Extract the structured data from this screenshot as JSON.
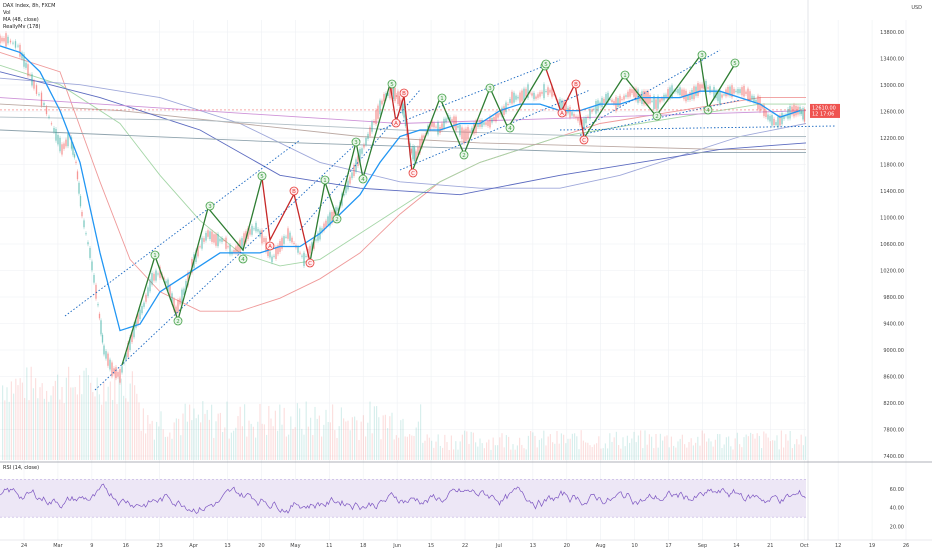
{
  "legend": {
    "symbol": "DAX Index, 8h, FXCM",
    "vol": "Vol",
    "ma": "MA (48, close)",
    "really": "ReallyMv (178)",
    "rsi": "RSI (14, close)"
  },
  "currency": "USD",
  "colors": {
    "grid": "#eef0f3",
    "up": "#26a69a",
    "down": "#ef5350",
    "ma_blue": "#2196f3",
    "impulse": "#2e7d32",
    "corrective": "#c62828",
    "channel": "#1565c0",
    "rsi_line": "#7e57c2",
    "rsi_band": "#ede7f6",
    "price_tag": "#ef5350",
    "bubble_green": "#43a047",
    "bubble_red": "#e53935"
  },
  "chart_data": {
    "type": "line",
    "x_ticks": [
      "24",
      "Mar",
      "9",
      "16",
      "23",
      "Apr",
      "13",
      "20",
      "May",
      "11",
      "18",
      "Jun",
      "15",
      "22",
      "Jul",
      "13",
      "20",
      "Aug",
      "10",
      "17",
      "Sep",
      "14",
      "21",
      "Oct",
      "12",
      "19",
      "26"
    ],
    "y_ticks": [
      "13800.00",
      "13400.00",
      "13000.00",
      "12600.00",
      "12200.00",
      "11800.00",
      "11400.00",
      "11000.00",
      "10600.00",
      "10200.00",
      "9800.00",
      "9400.00",
      "9000.00",
      "8600.00",
      "8200.00",
      "7800.00",
      "7400.00"
    ],
    "ylim": [
      7200,
      14000
    ],
    "last_price": "12610.00",
    "last_sub": "12 17:06",
    "rsi_ticks": [
      "60.00",
      "40.00",
      "20.00"
    ],
    "rsi_range": [
      10,
      80
    ],
    "rsi_band": [
      30,
      70
    ],
    "price_path": [
      [
        0,
        13700
      ],
      [
        8,
        13690
      ],
      [
        18,
        13600
      ],
      [
        26,
        13300
      ],
      [
        34,
        13000
      ],
      [
        44,
        12700
      ],
      [
        54,
        12300
      ],
      [
        62,
        12000
      ],
      [
        70,
        12200
      ],
      [
        76,
        11800
      ],
      [
        82,
        11000
      ],
      [
        90,
        10400
      ],
      [
        98,
        9600
      ],
      [
        104,
        8900
      ],
      [
        112,
        8600
      ],
      [
        120,
        8500
      ],
      [
        128,
        8900
      ],
      [
        136,
        9300
      ],
      [
        144,
        9600
      ],
      [
        152,
        10000
      ],
      [
        160,
        10100
      ],
      [
        168,
        9900
      ],
      [
        176,
        9500
      ],
      [
        184,
        9800
      ],
      [
        192,
        10200
      ],
      [
        200,
        10500
      ],
      [
        208,
        10700
      ],
      [
        216,
        10600
      ],
      [
        224,
        10600
      ],
      [
        232,
        10400
      ],
      [
        240,
        10500
      ],
      [
        248,
        10700
      ],
      [
        256,
        10800
      ],
      [
        264,
        10600
      ],
      [
        272,
        10300
      ],
      [
        280,
        10500
      ],
      [
        288,
        10700
      ],
      [
        296,
        10500
      ],
      [
        304,
        10300
      ],
      [
        312,
        10500
      ],
      [
        320,
        10700
      ],
      [
        328,
        10900
      ],
      [
        336,
        11000
      ],
      [
        344,
        11300
      ],
      [
        352,
        11600
      ],
      [
        360,
        11900
      ],
      [
        368,
        12200
      ],
      [
        376,
        12500
      ],
      [
        384,
        12800
      ],
      [
        392,
        12900
      ],
      [
        398,
        12800
      ],
      [
        404,
        12600
      ],
      [
        410,
        12000
      ],
      [
        416,
        11900
      ],
      [
        424,
        12200
      ],
      [
        432,
        12400
      ],
      [
        440,
        12300
      ],
      [
        448,
        12500
      ],
      [
        456,
        12400
      ],
      [
        464,
        12200
      ],
      [
        472,
        12300
      ],
      [
        480,
        12400
      ],
      [
        488,
        12400
      ],
      [
        496,
        12500
      ],
      [
        504,
        12600
      ],
      [
        512,
        12800
      ],
      [
        520,
        12800
      ],
      [
        528,
        12900
      ],
      [
        536,
        12800
      ],
      [
        544,
        12900
      ],
      [
        552,
        12900
      ],
      [
        560,
        12700
      ],
      [
        568,
        12600
      ],
      [
        576,
        12500
      ],
      [
        584,
        12400
      ],
      [
        592,
        12600
      ],
      [
        600,
        12700
      ],
      [
        608,
        12800
      ],
      [
        616,
        12700
      ],
      [
        624,
        12800
      ],
      [
        632,
        12900
      ],
      [
        640,
        12800
      ],
      [
        648,
        12800
      ],
      [
        656,
        12700
      ],
      [
        664,
        12800
      ],
      [
        672,
        12900
      ],
      [
        680,
        12900
      ],
      [
        688,
        12800
      ],
      [
        696,
        12900
      ],
      [
        704,
        13000
      ],
      [
        712,
        12900
      ],
      [
        720,
        12800
      ],
      [
        728,
        12900
      ],
      [
        736,
        12900
      ],
      [
        744,
        12900
      ],
      [
        752,
        12800
      ],
      [
        760,
        12700
      ],
      [
        768,
        12500
      ],
      [
        776,
        12400
      ],
      [
        784,
        12500
      ],
      [
        792,
        12600
      ],
      [
        800,
        12600
      ],
      [
        806,
        12500
      ]
    ],
    "ma_path": [
      [
        0,
        13600
      ],
      [
        20,
        13500
      ],
      [
        40,
        13200
      ],
      [
        60,
        12600
      ],
      [
        80,
        11800
      ],
      [
        100,
        10400
      ],
      [
        120,
        9200
      ],
      [
        140,
        9300
      ],
      [
        160,
        9800
      ],
      [
        180,
        10000
      ],
      [
        200,
        10200
      ],
      [
        220,
        10400
      ],
      [
        240,
        10400
      ],
      [
        260,
        10400
      ],
      [
        280,
        10500
      ],
      [
        300,
        10500
      ],
      [
        320,
        10700
      ],
      [
        340,
        11000
      ],
      [
        360,
        11300
      ],
      [
        380,
        11800
      ],
      [
        400,
        12200
      ],
      [
        420,
        12300
      ],
      [
        440,
        12300
      ],
      [
        460,
        12400
      ],
      [
        480,
        12400
      ],
      [
        500,
        12600
      ],
      [
        520,
        12700
      ],
      [
        540,
        12700
      ],
      [
        560,
        12600
      ],
      [
        580,
        12600
      ],
      [
        600,
        12700
      ],
      [
        620,
        12700
      ],
      [
        640,
        12800
      ],
      [
        660,
        12800
      ],
      [
        680,
        12800
      ],
      [
        700,
        12900
      ],
      [
        720,
        12900
      ],
      [
        740,
        12800
      ],
      [
        760,
        12700
      ],
      [
        780,
        12500
      ],
      [
        800,
        12600
      ]
    ],
    "bands": [
      {
        "color": "#ef9a9a",
        "pts": [
          [
            0,
            13500
          ],
          [
            60,
            13200
          ],
          [
            100,
            11500
          ],
          [
            130,
            10300
          ],
          [
            160,
            9800
          ],
          [
            200,
            9500
          ],
          [
            240,
            9500
          ],
          [
            280,
            9700
          ],
          [
            320,
            10000
          ],
          [
            360,
            10400
          ],
          [
            400,
            11000
          ],
          [
            440,
            11500
          ],
          [
            480,
            11800
          ],
          [
            520,
            12000
          ],
          [
            560,
            12200
          ],
          [
            600,
            12400
          ],
          [
            640,
            12500
          ],
          [
            680,
            12600
          ],
          [
            720,
            12700
          ],
          [
            760,
            12800
          ],
          [
            806,
            12800
          ]
        ]
      },
      {
        "color": "#a5d6a7",
        "pts": [
          [
            0,
            13300
          ],
          [
            60,
            13000
          ],
          [
            120,
            12400
          ],
          [
            160,
            11600
          ],
          [
            200,
            10900
          ],
          [
            240,
            10400
          ],
          [
            280,
            10200
          ],
          [
            320,
            10300
          ],
          [
            360,
            10700
          ],
          [
            400,
            11100
          ],
          [
            440,
            11500
          ],
          [
            480,
            11800
          ],
          [
            520,
            12000
          ],
          [
            560,
            12200
          ],
          [
            600,
            12300
          ],
          [
            640,
            12400
          ],
          [
            680,
            12500
          ],
          [
            720,
            12600
          ],
          [
            760,
            12700
          ],
          [
            806,
            12700
          ]
        ]
      },
      {
        "color": "#9fa8da",
        "pts": [
          [
            0,
            13100
          ],
          [
            80,
            13000
          ],
          [
            160,
            12800
          ],
          [
            240,
            12400
          ],
          [
            320,
            11800
          ],
          [
            400,
            11500
          ],
          [
            480,
            11400
          ],
          [
            560,
            11400
          ],
          [
            620,
            11600
          ],
          [
            680,
            11900
          ],
          [
            740,
            12200
          ],
          [
            806,
            12400
          ]
        ]
      },
      {
        "color": "#bcaaa4",
        "pts": [
          [
            0,
            12700
          ],
          [
            120,
            12600
          ],
          [
            240,
            12400
          ],
          [
            360,
            12200
          ],
          [
            480,
            12100
          ],
          [
            600,
            12050
          ],
          [
            720,
            12000
          ],
          [
            806,
            12000
          ]
        ]
      },
      {
        "color": "#5c6bc0",
        "pts": [
          [
            0,
            13200
          ],
          [
            100,
            12800
          ],
          [
            200,
            12300
          ],
          [
            280,
            11600
          ],
          [
            360,
            11400
          ],
          [
            460,
            11300
          ],
          [
            560,
            11600
          ],
          [
            640,
            11800
          ],
          [
            720,
            12000
          ],
          [
            806,
            12100
          ]
        ]
      },
      {
        "color": "#ce93d8",
        "pts": [
          [
            0,
            12800
          ],
          [
            200,
            12600
          ],
          [
            400,
            12400
          ],
          [
            600,
            12500
          ],
          [
            806,
            12600
          ]
        ]
      },
      {
        "color": "#b0bec5",
        "pts": [
          [
            0,
            12500
          ],
          [
            200,
            12450
          ],
          [
            400,
            12300
          ],
          [
            600,
            12200
          ],
          [
            806,
            12200
          ]
        ]
      },
      {
        "color": "#90a4ae",
        "pts": [
          [
            0,
            12300
          ],
          [
            300,
            12100
          ],
          [
            600,
            11950
          ],
          [
            806,
            11950
          ]
        ]
      }
    ],
    "channels": [
      {
        "pts": [
          [
            65,
            316
          ],
          [
            300,
            140
          ]
        ]
      },
      {
        "pts": [
          [
            95,
            390
          ],
          [
            360,
            140
          ]
        ]
      },
      {
        "pts": [
          [
            300,
            230
          ],
          [
            420,
            90
          ]
        ]
      },
      {
        "pts": [
          [
            380,
            130
          ],
          [
            560,
            60
          ]
        ]
      },
      {
        "pts": [
          [
            400,
            170
          ],
          [
            590,
            90
          ]
        ]
      },
      {
        "pts": [
          [
            580,
            130
          ],
          [
            720,
            50
          ]
        ]
      },
      {
        "pts": [
          [
            580,
            135
          ],
          [
            740,
            100
          ]
        ]
      },
      {
        "pts": [
          [
            560,
            130
          ],
          [
            835,
            126
          ]
        ]
      }
    ],
    "impulse_path": [
      [
        122,
        365
      ],
      [
        155,
        256
      ],
      [
        178,
        320
      ],
      [
        208,
        208
      ],
      [
        243,
        250
      ],
      [
        262,
        178
      ]
    ],
    "corrective_path": [
      [
        262,
        178
      ],
      [
        270,
        240
      ],
      [
        294,
        194
      ],
      [
        310,
        262
      ]
    ],
    "impulse_path2": [
      [
        310,
        262
      ],
      [
        325,
        182
      ],
      [
        337,
        218
      ],
      [
        356,
        142
      ],
      [
        363,
        178
      ],
      [
        390,
        84
      ]
    ],
    "corrective_path2": [
      [
        390,
        84
      ],
      [
        396,
        122
      ],
      [
        404,
        96
      ],
      [
        412,
        172
      ]
    ],
    "impulse_path3": [
      [
        412,
        172
      ],
      [
        440,
        98
      ],
      [
        464,
        154
      ],
      [
        490,
        88
      ],
      [
        508,
        128
      ],
      [
        545,
        66
      ]
    ],
    "corrective_path3": [
      [
        545,
        66
      ],
      [
        561,
        112
      ],
      [
        575,
        84
      ],
      [
        584,
        138
      ]
    ],
    "impulse_path4": [
      [
        584,
        138
      ],
      [
        624,
        76
      ],
      [
        656,
        116
      ],
      [
        700,
        56
      ],
      [
        708,
        108
      ],
      [
        735,
        64
      ]
    ],
    "waves": [
      {
        "label": "1",
        "c": "g",
        "x": 155,
        "y": 255
      },
      {
        "label": "2",
        "c": "g",
        "x": 178,
        "y": 321
      },
      {
        "label": "3",
        "c": "g",
        "x": 210,
        "y": 206
      },
      {
        "label": "4",
        "c": "g",
        "x": 243,
        "y": 259
      },
      {
        "label": "5",
        "c": "g",
        "x": 262,
        "y": 176
      },
      {
        "label": "A",
        "c": "r",
        "x": 270,
        "y": 246
      },
      {
        "label": "B",
        "c": "r",
        "x": 294,
        "y": 191
      },
      {
        "label": "C",
        "c": "r",
        "x": 310,
        "y": 263
      },
      {
        "label": "1",
        "c": "g",
        "x": 325,
        "y": 180
      },
      {
        "label": "2",
        "c": "g",
        "x": 337,
        "y": 219
      },
      {
        "label": "3",
        "c": "g",
        "x": 356,
        "y": 142
      },
      {
        "label": "4",
        "c": "g",
        "x": 363,
        "y": 179
      },
      {
        "label": "5",
        "c": "g",
        "x": 392,
        "y": 84
      },
      {
        "label": "A",
        "c": "r",
        "x": 396,
        "y": 123
      },
      {
        "label": "B",
        "c": "r",
        "x": 404,
        "y": 93
      },
      {
        "label": "C",
        "c": "r",
        "x": 413,
        "y": 173
      },
      {
        "label": "1",
        "c": "g",
        "x": 442,
        "y": 98
      },
      {
        "label": "2",
        "c": "g",
        "x": 464,
        "y": 155
      },
      {
        "label": "3",
        "c": "g",
        "x": 490,
        "y": 88
      },
      {
        "label": "4",
        "c": "g",
        "x": 510,
        "y": 128
      },
      {
        "label": "5",
        "c": "g",
        "x": 545,
        "y": 66
      },
      {
        "label": "A",
        "c": "r",
        "x": 562,
        "y": 113
      },
      {
        "label": "B",
        "c": "r",
        "x": 576,
        "y": 84
      },
      {
        "label": "C",
        "c": "r",
        "x": 584,
        "y": 140
      },
      {
        "label": "1",
        "c": "g",
        "x": 625,
        "y": 75
      },
      {
        "label": "2",
        "c": "g",
        "x": 657,
        "y": 116
      },
      {
        "label": "3",
        "c": "g",
        "x": 702,
        "y": 55
      },
      {
        "label": "4",
        "c": "g",
        "x": 708,
        "y": 110
      },
      {
        "label": "5",
        "c": "g",
        "x": 735,
        "y": 63
      },
      {
        "label": "5",
        "c": "g",
        "x": 546,
        "y": 64
      }
    ]
  }
}
